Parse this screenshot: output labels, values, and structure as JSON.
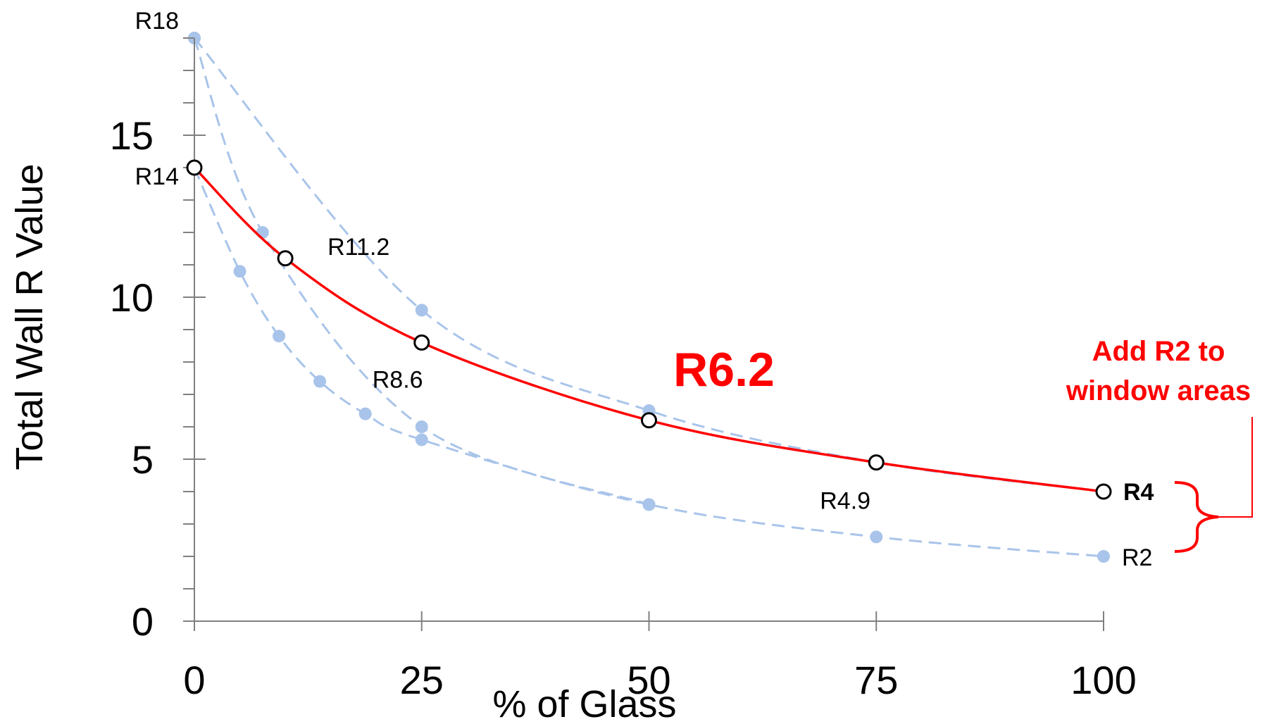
{
  "chart_data": {
    "type": "line",
    "title": "",
    "xlabel": "% of Glass",
    "ylabel": "Total Wall R Value",
    "xlim": [
      0,
      100
    ],
    "ylim": [
      0,
      18
    ],
    "x_ticks": [
      "0",
      "25",
      "50",
      "75",
      "100"
    ],
    "y_ticks": [
      "0",
      "5",
      "10",
      "15"
    ],
    "grid": false,
    "legend": "none",
    "main_series": {
      "color": "#ff0000",
      "points": [
        {
          "x": 0,
          "y": 14,
          "label": "R14"
        },
        {
          "x": 10,
          "y": 11.2,
          "label": "R11.2"
        },
        {
          "x": 25,
          "y": 8.6,
          "label": "R8.6"
        },
        {
          "x": 50,
          "y": 6.2,
          "label": ""
        },
        {
          "x": 75,
          "y": 4.9,
          "label": "R4.9"
        },
        {
          "x": 100,
          "y": 4,
          "label": "R4"
        }
      ]
    },
    "background_series": [
      {
        "color": "#a9c4ea",
        "points": [
          {
            "x": 0,
            "y": 18
          },
          {
            "x": 25,
            "y": 9.6
          },
          {
            "x": 50,
            "y": 6.5
          },
          {
            "x": 75,
            "y": 4.9
          },
          {
            "x": 100,
            "y": 4
          }
        ]
      },
      {
        "color": "#a9c4ea",
        "points": [
          {
            "x": 0,
            "y": 18
          },
          {
            "x": 7.5,
            "y": 12
          },
          {
            "x": 25,
            "y": 6
          },
          {
            "x": 50,
            "y": 3.6
          }
        ]
      },
      {
        "color": "#a9c4ea",
        "points": [
          {
            "x": 0,
            "y": 14
          },
          {
            "x": 5,
            "y": 10.8
          },
          {
            "x": 9.3,
            "y": 8.8
          },
          {
            "x": 13.8,
            "y": 7.4
          },
          {
            "x": 18.8,
            "y": 6.4
          },
          {
            "x": 25,
            "y": 5.6
          },
          {
            "x": 50,
            "y": 3.6
          },
          {
            "x": 75,
            "y": 2.6
          },
          {
            "x": 100,
            "y": 2
          }
        ]
      }
    ],
    "annotations": {
      "r18": "R18",
      "r2": "R2",
      "highlight_value": "R6.2",
      "callout_line1": "Add R2 to",
      "callout_line2": "window areas"
    },
    "annotation_color": "#ff0000"
  }
}
